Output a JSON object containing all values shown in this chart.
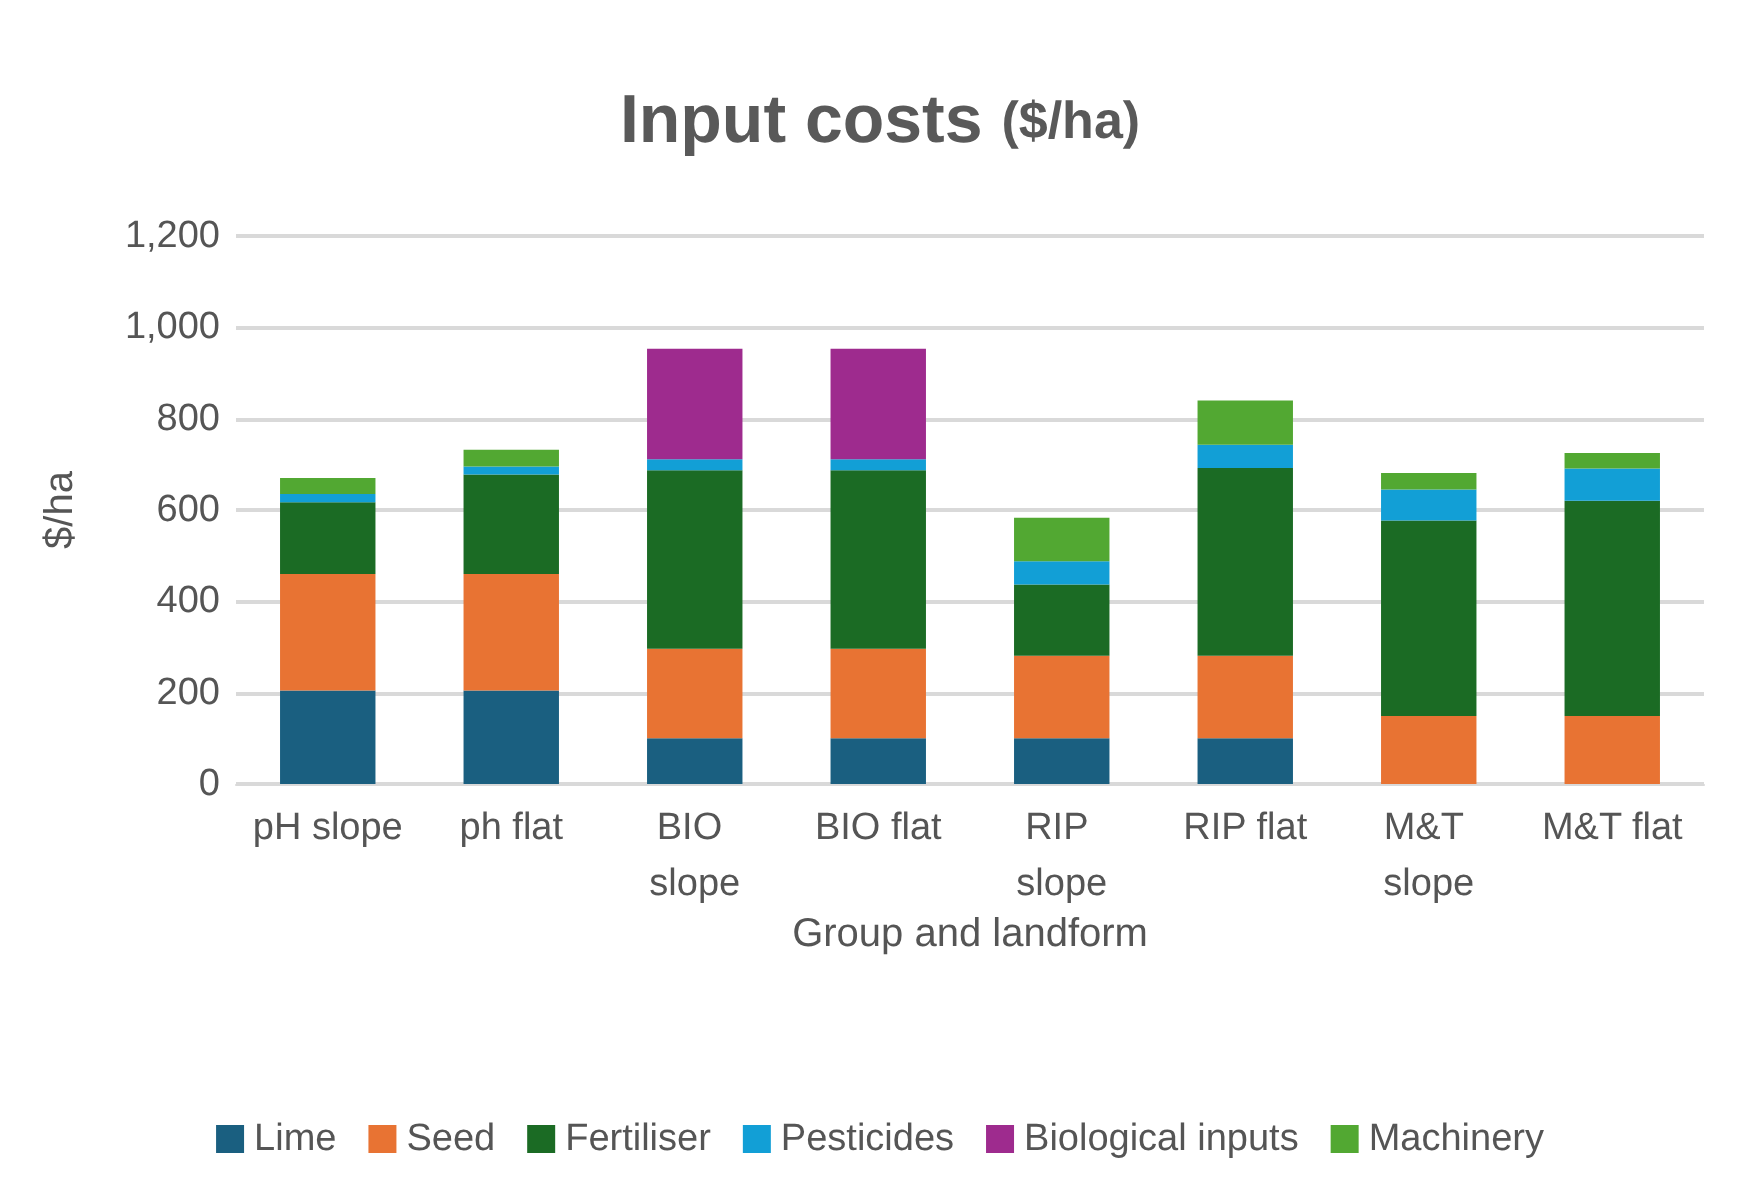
{
  "chart_data": {
    "type": "bar",
    "title": "Input costs ($/ha)",
    "xlabel": "Group and landform",
    "ylabel": "$/ha",
    "categories": [
      "pH slope",
      "ph flat",
      "BIO slope",
      "BIO flat",
      "RIP slope",
      "RIP flat",
      "M&T slope",
      "M&T flat"
    ],
    "stacked": true,
    "series": [
      {
        "name": "Lime",
        "color": "#1a5f80",
        "values": [
          205,
          205,
          100,
          100,
          100,
          100,
          0,
          0
        ]
      },
      {
        "name": "Seed",
        "color": "#e87333",
        "values": [
          255,
          255,
          196,
          196,
          181,
          181,
          149,
          149
        ]
      },
      {
        "name": "Fertiliser",
        "color": "#1b6b24",
        "values": [
          157,
          218,
          391,
          391,
          156,
          411,
          428,
          471
        ]
      },
      {
        "name": "Pesticides",
        "color": "#129fd6",
        "values": [
          18,
          17,
          24,
          24,
          51,
          51,
          68,
          71
        ]
      },
      {
        "name": "Biological inputs",
        "color": "#9e2b8e",
        "values": [
          0,
          0,
          242,
          242,
          0,
          0,
          0,
          0
        ]
      },
      {
        "name": "Machinery",
        "color": "#52a832",
        "values": [
          35,
          37,
          0,
          0,
          95,
          97,
          36,
          34
        ]
      }
    ],
    "ylim": [
      0,
      1200
    ],
    "yticks": [
      0,
      200,
      400,
      600,
      800,
      {
        "value": 1000,
        "label": "1,000"
      },
      {
        "value": 1200,
        "label": "1,200"
      }
    ],
    "grid": "y",
    "legend": "bottom"
  }
}
